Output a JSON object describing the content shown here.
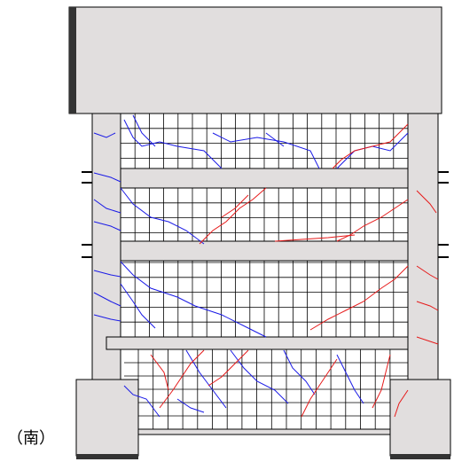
{
  "label": "（南）"
}
